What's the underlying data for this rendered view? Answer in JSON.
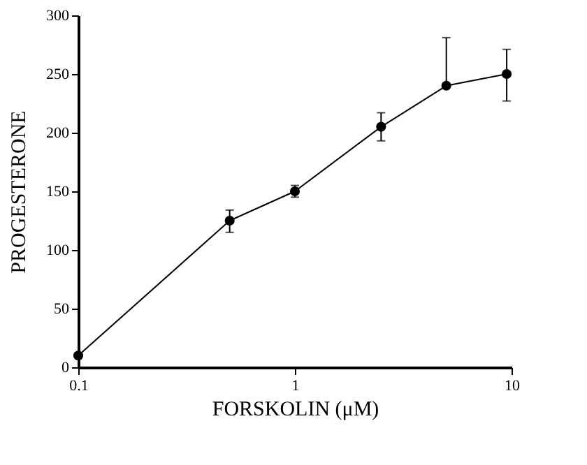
{
  "chart_data": {
    "type": "line",
    "xlabel": "FORSKOLIN (μM)",
    "ylabel": "PROGESTERONE",
    "x": [
      0.1,
      0.5,
      1,
      2.5,
      5,
      9.5
    ],
    "values": [
      10,
      125,
      150,
      205,
      240,
      250
    ],
    "errors": [
      null,
      [
        115,
        134
      ],
      [
        145,
        155
      ],
      [
        193,
        217
      ],
      [
        240,
        281
      ],
      [
        227,
        271
      ]
    ],
    "color": "#000000",
    "marker": "circle",
    "line_style": "solid",
    "log": "x",
    "xlim": [
      0.1,
      10
    ],
    "xticks": [
      0.1,
      1,
      10
    ],
    "ylim": [
      0,
      300
    ],
    "yticks": [
      0,
      50,
      100,
      150,
      200,
      250,
      300
    ],
    "grid": false
  }
}
